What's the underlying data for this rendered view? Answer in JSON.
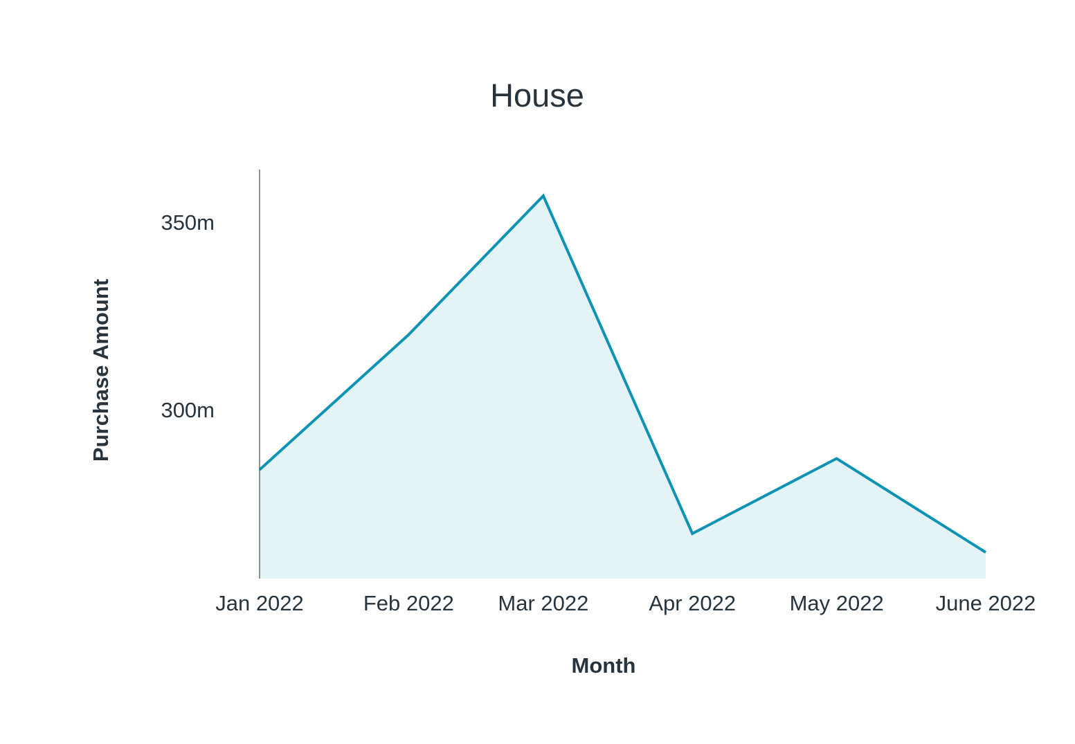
{
  "chart_data": {
    "type": "area",
    "title": "House",
    "xlabel": "Month",
    "ylabel": "Purchase Amount",
    "categories": [
      "Jan 2022",
      "Feb 2022",
      "Mar 2022",
      "Apr 2022",
      "May 2022",
      "June 2022"
    ],
    "x": [
      "2022-01-01",
      "2022-02-01",
      "2022-03-01",
      "2022-04-01",
      "2022-05-01",
      "2022-06-01"
    ],
    "series": [
      {
        "values": [
          284,
          320,
          357,
          267,
          287,
          262
        ]
      }
    ],
    "y_ticks": [
      300,
      350
    ],
    "y_tick_labels": [
      "300m",
      "350m"
    ],
    "ylim": [
      255,
      364
    ],
    "grid": false,
    "legend": "none",
    "colors": {
      "line": "#0e93b4",
      "fill": "#e4f4f6",
      "axis": "#444c52",
      "text": "#27343d"
    }
  }
}
